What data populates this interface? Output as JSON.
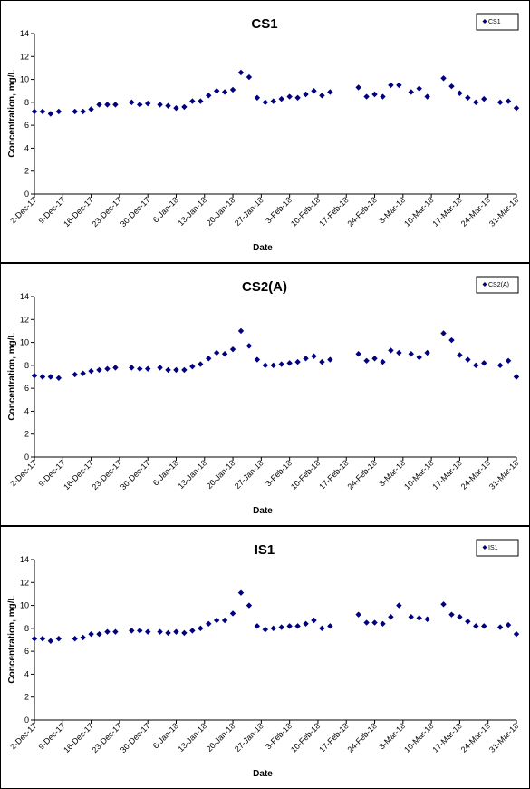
{
  "colors": {
    "marker": "#000080",
    "axis": "#000000",
    "background": "#ffffff"
  },
  "chart_data": [
    {
      "type": "scatter",
      "title": "CS1",
      "xlabel": "Date",
      "ylabel": "Concentration, mg/L",
      "ylim": [
        0,
        14
      ],
      "yticks": [
        0,
        2,
        4,
        6,
        8,
        10,
        12,
        14
      ],
      "xlim": [
        "2017-12-02",
        "2018-03-31"
      ],
      "xticklabels": [
        "2-Dec-17",
        "9-Dec-17",
        "16-Dec-17",
        "23-Dec-17",
        "30-Dec-17",
        "6-Jan-18",
        "13-Jan-18",
        "20-Jan-18",
        "27-Jan-18",
        "3-Feb-18",
        "10-Feb-18",
        "17-Feb-18",
        "24-Feb-18",
        "3-Mar-18",
        "10-Mar-18",
        "17-Mar-18",
        "24-Mar-18",
        "31-Mar-18"
      ],
      "grid": false,
      "legend_position": "top-right",
      "series": [
        {
          "name": "CS1",
          "x": [
            "2017-12-02",
            "2017-12-04",
            "2017-12-06",
            "2017-12-08",
            "2017-12-12",
            "2017-12-14",
            "2017-12-16",
            "2017-12-18",
            "2017-12-20",
            "2017-12-22",
            "2017-12-26",
            "2017-12-28",
            "2017-12-30",
            "2018-01-02",
            "2018-01-04",
            "2018-01-06",
            "2018-01-08",
            "2018-01-10",
            "2018-01-12",
            "2018-01-14",
            "2018-01-16",
            "2018-01-18",
            "2018-01-20",
            "2018-01-22",
            "2018-01-24",
            "2018-01-26",
            "2018-01-28",
            "2018-01-30",
            "2018-02-01",
            "2018-02-03",
            "2018-02-05",
            "2018-02-07",
            "2018-02-09",
            "2018-02-11",
            "2018-02-13",
            "2018-02-20",
            "2018-02-22",
            "2018-02-24",
            "2018-02-26",
            "2018-02-28",
            "2018-03-02",
            "2018-03-05",
            "2018-03-07",
            "2018-03-09",
            "2018-03-13",
            "2018-03-15",
            "2018-03-17",
            "2018-03-19",
            "2018-03-21",
            "2018-03-23",
            "2018-03-27",
            "2018-03-29",
            "2018-03-31"
          ],
          "y": [
            7.2,
            7.2,
            7.0,
            7.2,
            7.2,
            7.2,
            7.4,
            7.8,
            7.8,
            7.8,
            8.0,
            7.8,
            7.9,
            7.8,
            7.7,
            7.5,
            7.6,
            8.1,
            8.1,
            8.6,
            9.0,
            8.9,
            9.1,
            10.6,
            10.2,
            8.4,
            8.0,
            8.1,
            8.3,
            8.5,
            8.4,
            8.7,
            9.0,
            8.6,
            8.9,
            9.3,
            8.5,
            8.7,
            8.5,
            9.5,
            9.5,
            8.9,
            9.2,
            8.5,
            10.1,
            9.4,
            8.8,
            8.4,
            8.0,
            8.3,
            8.0,
            8.1,
            7.5
          ]
        }
      ]
    },
    {
      "type": "scatter",
      "title": "CS2(A)",
      "xlabel": "Date",
      "ylabel": "Concentration, mg/L",
      "ylim": [
        0,
        14
      ],
      "yticks": [
        0,
        2,
        4,
        6,
        8,
        10,
        12,
        14
      ],
      "xlim": [
        "2017-12-02",
        "2018-03-31"
      ],
      "xticklabels": [
        "2-Dec-17",
        "9-Dec-17",
        "16-Dec-17",
        "23-Dec-17",
        "30-Dec-17",
        "6-Jan-18",
        "13-Jan-18",
        "20-Jan-18",
        "27-Jan-18",
        "3-Feb-18",
        "10-Feb-18",
        "17-Feb-18",
        "24-Feb-18",
        "3-Mar-18",
        "10-Mar-18",
        "17-Mar-18",
        "24-Mar-18",
        "31-Mar-18"
      ],
      "grid": false,
      "legend_position": "top-right",
      "series": [
        {
          "name": "CS2(A)",
          "x": [
            "2017-12-02",
            "2017-12-04",
            "2017-12-06",
            "2017-12-08",
            "2017-12-12",
            "2017-12-14",
            "2017-12-16",
            "2017-12-18",
            "2017-12-20",
            "2017-12-22",
            "2017-12-26",
            "2017-12-28",
            "2017-12-30",
            "2018-01-02",
            "2018-01-04",
            "2018-01-06",
            "2018-01-08",
            "2018-01-10",
            "2018-01-12",
            "2018-01-14",
            "2018-01-16",
            "2018-01-18",
            "2018-01-20",
            "2018-01-22",
            "2018-01-24",
            "2018-01-26",
            "2018-01-28",
            "2018-01-30",
            "2018-02-01",
            "2018-02-03",
            "2018-02-05",
            "2018-02-07",
            "2018-02-09",
            "2018-02-11",
            "2018-02-13",
            "2018-02-20",
            "2018-02-22",
            "2018-02-24",
            "2018-02-26",
            "2018-02-28",
            "2018-03-02",
            "2018-03-05",
            "2018-03-07",
            "2018-03-09",
            "2018-03-13",
            "2018-03-15",
            "2018-03-17",
            "2018-03-19",
            "2018-03-21",
            "2018-03-23",
            "2018-03-27",
            "2018-03-29",
            "2018-03-31"
          ],
          "y": [
            7.1,
            7.0,
            7.0,
            6.9,
            7.2,
            7.3,
            7.5,
            7.6,
            7.7,
            7.8,
            7.8,
            7.7,
            7.7,
            7.8,
            7.6,
            7.6,
            7.6,
            7.9,
            8.1,
            8.6,
            9.1,
            9.0,
            9.4,
            11.0,
            9.7,
            8.5,
            8.0,
            8.0,
            8.1,
            8.2,
            8.3,
            8.6,
            8.8,
            8.3,
            8.5,
            9.0,
            8.4,
            8.6,
            8.3,
            9.3,
            9.1,
            9.0,
            8.7,
            9.1,
            10.8,
            10.2,
            8.9,
            8.5,
            8.0,
            8.2,
            8.0,
            8.4,
            7.0
          ]
        }
      ]
    },
    {
      "type": "scatter",
      "title": "IS1",
      "xlabel": "Date",
      "ylabel": "Concentration, mg/L",
      "ylim": [
        0,
        14
      ],
      "yticks": [
        0,
        2,
        4,
        6,
        8,
        10,
        12,
        14
      ],
      "xlim": [
        "2017-12-02",
        "2018-03-31"
      ],
      "xticklabels": [
        "2-Dec-17",
        "9-Dec-17",
        "16-Dec-17",
        "23-Dec-17",
        "30-Dec-17",
        "6-Jan-18",
        "13-Jan-18",
        "20-Jan-18",
        "27-Jan-18",
        "3-Feb-18",
        "10-Feb-18",
        "17-Feb-18",
        "24-Feb-18",
        "3-Mar-18",
        "10-Mar-18",
        "17-Mar-18",
        "24-Mar-18",
        "31-Mar-18"
      ],
      "grid": false,
      "legend_position": "top-right",
      "series": [
        {
          "name": "IS1",
          "x": [
            "2017-12-02",
            "2017-12-04",
            "2017-12-06",
            "2017-12-08",
            "2017-12-12",
            "2017-12-14",
            "2017-12-16",
            "2017-12-18",
            "2017-12-20",
            "2017-12-22",
            "2017-12-26",
            "2017-12-28",
            "2017-12-30",
            "2018-01-02",
            "2018-01-04",
            "2018-01-06",
            "2018-01-08",
            "2018-01-10",
            "2018-01-12",
            "2018-01-14",
            "2018-01-16",
            "2018-01-18",
            "2018-01-20",
            "2018-01-22",
            "2018-01-24",
            "2018-01-26",
            "2018-01-28",
            "2018-01-30",
            "2018-02-01",
            "2018-02-03",
            "2018-02-05",
            "2018-02-07",
            "2018-02-09",
            "2018-02-11",
            "2018-02-13",
            "2018-02-20",
            "2018-02-22",
            "2018-02-24",
            "2018-02-26",
            "2018-02-28",
            "2018-03-02",
            "2018-03-05",
            "2018-03-07",
            "2018-03-09",
            "2018-03-13",
            "2018-03-15",
            "2018-03-17",
            "2018-03-19",
            "2018-03-21",
            "2018-03-23",
            "2018-03-27",
            "2018-03-29",
            "2018-03-31"
          ],
          "y": [
            7.1,
            7.1,
            6.9,
            7.1,
            7.1,
            7.2,
            7.5,
            7.5,
            7.7,
            7.7,
            7.8,
            7.8,
            7.7,
            7.7,
            7.6,
            7.7,
            7.6,
            7.8,
            8.0,
            8.4,
            8.7,
            8.7,
            9.3,
            11.1,
            10.0,
            8.2,
            7.9,
            8.0,
            8.1,
            8.2,
            8.2,
            8.4,
            8.7,
            8.0,
            8.2,
            9.2,
            8.5,
            8.5,
            8.4,
            9.0,
            10.0,
            9.0,
            8.9,
            8.8,
            10.1,
            9.2,
            9.0,
            8.6,
            8.2,
            8.2,
            8.1,
            8.3,
            7.5
          ]
        }
      ]
    }
  ]
}
